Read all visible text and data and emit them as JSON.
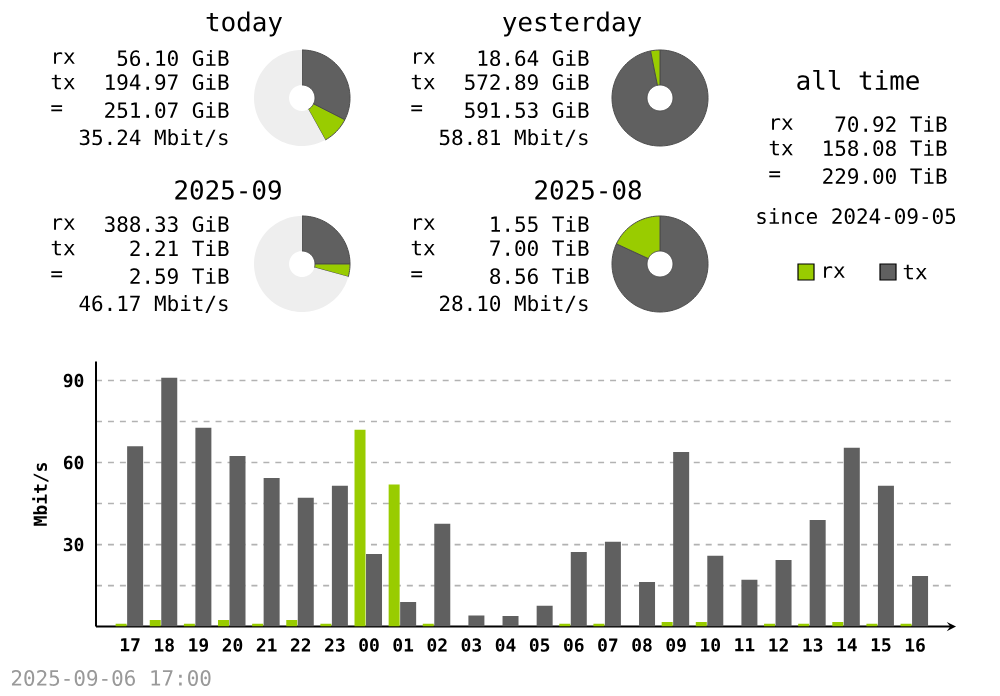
{
  "chart_data": [
    {
      "type": "donut",
      "title": "today",
      "annotations": [
        "rx",
        "56.10 GiB",
        "tx",
        "194.97 GiB",
        "=",
        "251.07 GiB",
        "35.24 Mbit/s"
      ],
      "categories": [
        null,
        null,
        null
      ],
      "values": [
        32.5,
        9.4,
        58.1
      ],
      "colors": [
        "#606060",
        "#99cc00",
        "#eeeeee"
      ]
    },
    {
      "type": "donut",
      "title": "yesterday",
      "annotations": [
        "rx",
        "18.64 GiB",
        "tx",
        "572.89 GiB",
        "=",
        "591.53 GiB",
        "58.81 Mbit/s"
      ],
      "categories": [
        null,
        null
      ],
      "values": [
        96.85,
        3.15
      ],
      "colors": [
        "#606060",
        "#99cc00"
      ]
    },
    {
      "type": "other",
      "title": "all time",
      "annotations": [
        "rx",
        "70.92 TiB",
        "tx",
        "158.08 TiB",
        "=",
        "229.00 TiB",
        "since 2024-09-05"
      ]
    },
    {
      "type": "donut",
      "title": "2025-09",
      "annotations": [
        "rx",
        "388.33 GiB",
        "tx",
        "2.21 TiB",
        "=",
        "2.59 TiB",
        "46.17 Mbit/s"
      ],
      "categories": [
        null,
        null,
        null
      ],
      "values": [
        25,
        4.3,
        70.7
      ],
      "colors": [
        "#606060",
        "#99cc00",
        "#eeeeee"
      ]
    },
    {
      "type": "donut",
      "title": "2025-08",
      "annotations": [
        "rx",
        "1.55 TiB",
        "tx",
        "7.00 TiB",
        "=",
        "8.56 TiB",
        "28.10 Mbit/s"
      ],
      "categories": [
        null,
        null
      ],
      "values": [
        81.9,
        18.1
      ],
      "colors": [
        "#606060",
        "#99cc00"
      ]
    },
    {
      "type": "bar",
      "ylabel": "Mbit/s",
      "annotations": [
        "2025-09-06 17:00"
      ],
      "categories": [
        "17",
        "18",
        "19",
        "20",
        "21",
        "22",
        "23",
        "00",
        "01",
        "02",
        "03",
        "04",
        "05",
        "06",
        "07",
        "08",
        "09",
        "10",
        "11",
        "12",
        "13",
        "14",
        "15",
        "16"
      ],
      "series": [
        {
          "name": "rx",
          "color": "#99cc00",
          "values": [
            1,
            2.4,
            1,
            2.4,
            1,
            2.4,
            1,
            72,
            52,
            1,
            0,
            0,
            0,
            1,
            1,
            0,
            1.7,
            1.7,
            0,
            1,
            1,
            1.7,
            1,
            1
          ]
        },
        {
          "name": "tx",
          "color": "#606060",
          "values": [
            66,
            91,
            72.7,
            62.4,
            54.4,
            47.1,
            51.5,
            26.6,
            9,
            37.6,
            4.1,
            3.9,
            7.6,
            27.3,
            31,
            16.3,
            63.9,
            25.9,
            17.1,
            24.4,
            39,
            65.4,
            51.5,
            18.5
          ]
        }
      ],
      "ylim": [
        0,
        97
      ],
      "yticks": [
        {
          "value": 15,
          "label": null
        },
        30,
        {
          "value": 45,
          "label": null
        },
        60,
        {
          "value": 75,
          "label": null
        },
        90
      ],
      "grid": "y",
      "legend": "top right"
    }
  ]
}
